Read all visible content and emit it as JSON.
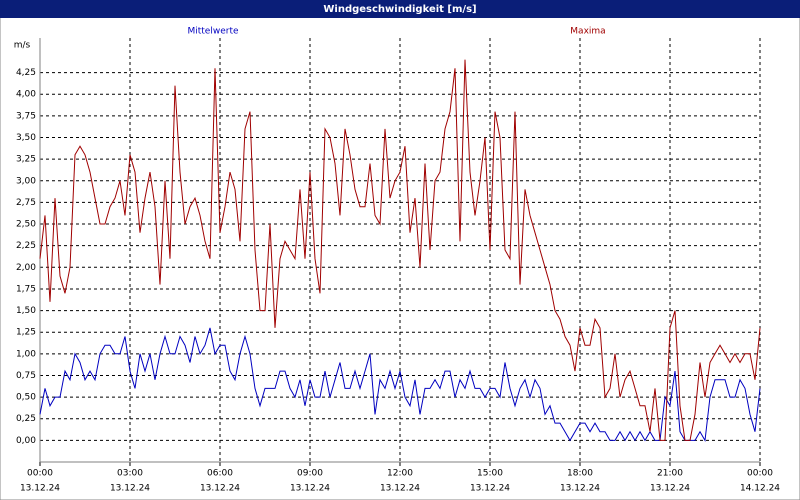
{
  "chart_data": {
    "type": "line",
    "title": "Windgeschwindigkeit [m/s]",
    "y_unit": "m/s",
    "x": [
      0,
      10,
      20,
      30,
      40,
      50,
      60,
      70,
      80,
      90,
      100,
      110,
      120,
      130,
      140,
      150,
      160,
      170,
      180,
      190,
      200,
      210,
      220,
      230,
      240,
      250,
      260,
      270,
      280,
      290,
      300,
      310,
      320,
      330,
      340,
      350,
      360,
      370,
      380,
      390,
      400,
      410,
      420,
      430,
      440,
      450,
      460,
      470,
      480,
      490,
      500,
      510,
      520,
      530,
      540,
      550,
      560,
      570,
      580,
      590,
      600,
      610,
      620,
      630,
      640,
      650,
      660,
      670,
      680,
      690,
      700,
      710,
      720,
      730,
      740,
      750,
      760,
      770,
      780,
      790,
      800,
      810,
      820,
      830,
      840,
      850,
      860,
      870,
      880,
      890,
      900,
      910,
      920,
      930,
      940,
      950,
      960,
      970,
      980,
      990,
      1000,
      1010,
      1020,
      1030,
      1040,
      1050,
      1060,
      1070,
      1080,
      1090,
      1100,
      1110,
      1120,
      1130,
      1140,
      1150,
      1160,
      1170,
      1180,
      1190,
      1200,
      1210,
      1220,
      1230,
      1240,
      1250,
      1260,
      1270,
      1280,
      1290,
      1300,
      1310,
      1320,
      1330,
      1340,
      1350,
      1360,
      1370,
      1380,
      1390,
      1400,
      1410,
      1420,
      1430,
      1440
    ],
    "series": [
      {
        "name": "Mittelwerte",
        "color": "#0000c0",
        "values": [
          0.3,
          0.6,
          0.4,
          0.5,
          0.5,
          0.8,
          0.7,
          1.0,
          0.9,
          0.7,
          0.8,
          0.7,
          1.0,
          1.1,
          1.1,
          1.0,
          1.0,
          1.2,
          0.8,
          0.6,
          1.0,
          0.8,
          1.0,
          0.7,
          1.0,
          1.2,
          1.0,
          1.0,
          1.2,
          1.1,
          0.9,
          1.2,
          1.0,
          1.1,
          1.3,
          1.0,
          1.1,
          1.1,
          0.8,
          0.7,
          1.0,
          1.2,
          1.0,
          0.6,
          0.4,
          0.6,
          0.6,
          0.6,
          0.8,
          0.8,
          0.6,
          0.5,
          0.7,
          0.4,
          0.7,
          0.5,
          0.5,
          0.8,
          0.5,
          0.7,
          0.9,
          0.6,
          0.6,
          0.8,
          0.6,
          0.8,
          1.0,
          0.3,
          0.7,
          0.6,
          0.8,
          0.6,
          0.8,
          0.5,
          0.4,
          0.7,
          0.3,
          0.6,
          0.6,
          0.7,
          0.6,
          0.8,
          0.8,
          0.5,
          0.7,
          0.6,
          0.8,
          0.6,
          0.6,
          0.5,
          0.6,
          0.6,
          0.5,
          0.9,
          0.6,
          0.4,
          0.6,
          0.7,
          0.5,
          0.7,
          0.6,
          0.3,
          0.4,
          0.2,
          0.2,
          0.1,
          0.0,
          0.1,
          0.2,
          0.2,
          0.1,
          0.2,
          0.1,
          0.1,
          0.0,
          0.0,
          0.1,
          0.0,
          0.1,
          0.0,
          0.1,
          0.0,
          0.1,
          0.0,
          0.0,
          0.5,
          0.4,
          0.8,
          0.1,
          0.0,
          0.0,
          0.0,
          0.1,
          0.0,
          0.5,
          0.7,
          0.7,
          0.7,
          0.5,
          0.5,
          0.7,
          0.6,
          0.3,
          0.1,
          0.6
        ]
      },
      {
        "name": "Maxima",
        "color": "#a00000",
        "values": [
          2.1,
          2.6,
          1.6,
          2.8,
          1.9,
          1.7,
          2.0,
          3.3,
          3.4,
          3.3,
          3.1,
          2.8,
          2.5,
          2.5,
          2.7,
          2.8,
          3.0,
          2.6,
          3.3,
          3.1,
          2.4,
          2.8,
          3.1,
          2.7,
          1.8,
          3.0,
          2.1,
          4.1,
          3.1,
          2.5,
          2.7,
          2.8,
          2.6,
          2.3,
          2.1,
          4.3,
          2.4,
          2.7,
          3.1,
          2.9,
          2.3,
          3.6,
          3.8,
          2.2,
          1.5,
          1.5,
          2.5,
          1.3,
          2.1,
          2.3,
          2.2,
          2.1,
          2.9,
          2.1,
          3.1,
          2.1,
          1.7,
          3.6,
          3.5,
          3.2,
          2.6,
          3.6,
          3.3,
          2.9,
          2.7,
          2.7,
          3.2,
          2.6,
          2.5,
          3.6,
          2.8,
          3.0,
          3.1,
          3.4,
          2.4,
          2.8,
          2.0,
          3.2,
          2.2,
          3.0,
          3.1,
          3.6,
          3.8,
          4.3,
          2.3,
          4.4,
          3.1,
          2.6,
          3.0,
          3.5,
          2.2,
          3.8,
          3.5,
          2.2,
          2.1,
          3.8,
          1.8,
          2.9,
          2.6,
          2.4,
          2.2,
          2.0,
          1.8,
          1.5,
          1.4,
          1.2,
          1.1,
          0.8,
          1.3,
          1.1,
          1.1,
          1.4,
          1.3,
          0.5,
          0.6,
          1.0,
          0.5,
          0.7,
          0.8,
          0.6,
          0.4,
          0.4,
          0.1,
          0.6,
          0.0,
          0.0,
          1.3,
          1.5,
          0.4,
          0.0,
          0.0,
          0.3,
          0.9,
          0.5,
          0.9,
          1.0,
          1.1,
          1.0,
          0.9,
          1.0,
          0.9,
          1.0,
          1.0,
          0.7,
          1.3
        ]
      }
    ],
    "xlim": [
      0,
      1440
    ],
    "xticks": [
      {
        "value": 0,
        "label": "00:00"
      },
      {
        "value": 180,
        "label": "03:00"
      },
      {
        "value": 360,
        "label": "06:00"
      },
      {
        "value": 540,
        "label": "09:00"
      },
      {
        "value": 720,
        "label": "12:00"
      },
      {
        "value": 900,
        "label": "15:00"
      },
      {
        "value": 1080,
        "label": "18:00"
      },
      {
        "value": 1260,
        "label": "21:00"
      },
      {
        "value": 1440,
        "label": "00:00"
      }
    ],
    "xtick_dates": [
      "13.12.24",
      "13.12.24",
      "13.12.24",
      "13.12.24",
      "13.12.24",
      "13.12.24",
      "13.12.24",
      "13.12.24",
      "14.12.24"
    ],
    "ylim": [
      -0.25,
      4.65
    ],
    "yticks": [
      {
        "value": 0,
        "label": "0,00"
      },
      {
        "value": 0.25,
        "label": "0,25"
      },
      {
        "value": 0.5,
        "label": "0,50"
      },
      {
        "value": 0.75,
        "label": "0,75"
      },
      {
        "value": 1,
        "label": "1,00"
      },
      {
        "value": 1.25,
        "label": "1,25"
      },
      {
        "value": 1.5,
        "label": "1,50"
      },
      {
        "value": 1.75,
        "label": "1,75"
      },
      {
        "value": 2,
        "label": "2,00"
      },
      {
        "value": 2.25,
        "label": "2,25"
      },
      {
        "value": 2.5,
        "label": "2,50"
      },
      {
        "value": 2.75,
        "label": "2,75"
      },
      {
        "value": 3,
        "label": "3,00"
      },
      {
        "value": 3.25,
        "label": "3,25"
      },
      {
        "value": 3.5,
        "label": "3,50"
      },
      {
        "value": 3.75,
        "label": "3,75"
      },
      {
        "value": 4,
        "label": "4,00"
      },
      {
        "value": 4.25,
        "label": "4,25"
      }
    ],
    "grid": true
  }
}
